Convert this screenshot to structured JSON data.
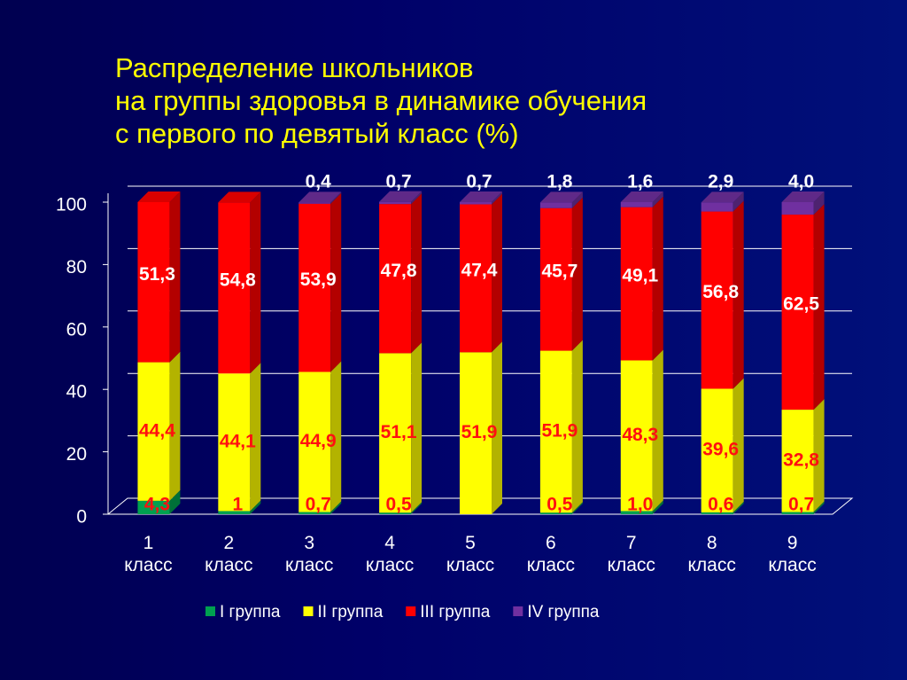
{
  "chart_data": {
    "type": "bar",
    "stacked": true,
    "title": [
      "Распределение школьников",
      "на группы здоровья в динамике обучения",
      "с первого по девятый класс (%)"
    ],
    "categories": [
      "1 класс",
      "2 класс",
      "3 класс",
      "4 класс",
      "5 класс",
      "6 класс",
      "7 класс",
      "8 класс",
      "9 класс"
    ],
    "series": [
      {
        "name": "I группа",
        "color": "#00a050",
        "label_color": "#ff1010",
        "values": [
          4.3,
          1,
          0.7,
          0.5,
          null,
          0.5,
          1.0,
          0.6,
          0.7
        ],
        "value_labels": [
          "4,3",
          "1",
          "0,7",
          "0,5",
          null,
          "0,5",
          "1,0",
          "0,6",
          "0,7"
        ]
      },
      {
        "name": "II группа",
        "color": "#ffff00",
        "label_color": "#ff1010",
        "values": [
          44.4,
          44.1,
          44.9,
          51.1,
          51.9,
          51.9,
          48.3,
          39.6,
          32.8
        ],
        "value_labels": [
          "44,4",
          "44,1",
          "44,9",
          "51,1",
          "51,9",
          "51,9",
          "48,3",
          "39,6",
          "32,8"
        ]
      },
      {
        "name": "III группа",
        "color": "#ff0000",
        "label_color": "#ffffff",
        "values": [
          51.3,
          54.8,
          53.9,
          47.8,
          47.4,
          45.7,
          49.1,
          56.8,
          62.5
        ],
        "value_labels": [
          "51,3",
          "54,8",
          "53,9",
          "47,8",
          "47,4",
          "45,7",
          "49,1",
          "56,8",
          "62,5"
        ]
      },
      {
        "name": "IV группа",
        "color": "#7030a0",
        "label_color": "#ffffff",
        "values": [
          null,
          null,
          0.4,
          0.7,
          0.7,
          1.8,
          1.6,
          2.9,
          4.0
        ],
        "value_labels": [
          null,
          null,
          "0,4",
          "0,7",
          "0,7",
          "1,8",
          "1,6",
          "2,9",
          "4,0"
        ]
      }
    ],
    "ylim": [
      0,
      100
    ],
    "yticks": [
      0,
      20,
      40,
      60,
      80,
      100
    ],
    "grid": true,
    "legend": "bottom"
  }
}
